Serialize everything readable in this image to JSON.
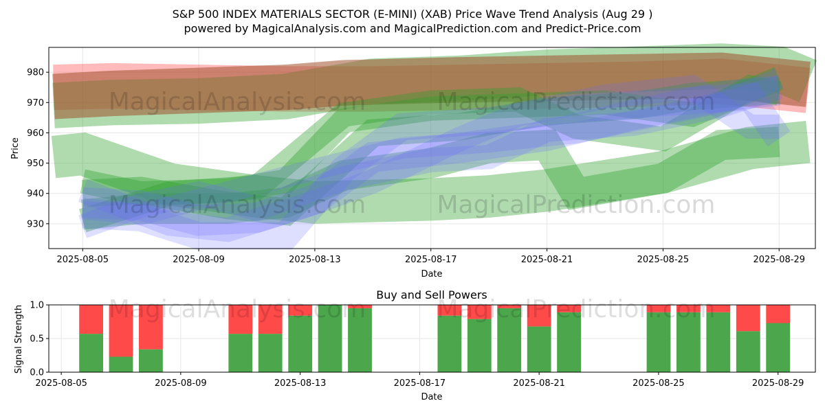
{
  "title": "S&P 500 INDEX MATERIALS SECTOR (E-MINI) (XAB) Price Wave Trend Analysis (Aug 29 )",
  "subtitle": "powered by MagicalAnalysis.com and MagicalPrediction.com and Predict-Price.com",
  "watermarks": [
    "MagicalAnalysis.com",
    "MagicalPrediction.com"
  ],
  "colors": {
    "green_band": "#2ca02c",
    "red_band": "#ff4d4d",
    "blue_band": "#6b6bff",
    "buy_bar": "#4ca64c",
    "sell_bar": "#ff4a4a"
  },
  "chart_data": [
    {
      "type": "line",
      "title": "",
      "xlabel": "Date",
      "ylabel": "Price",
      "x_ticks": [
        "2025-08-05",
        "2025-08-09",
        "2025-08-13",
        "2025-08-17",
        "2025-08-21",
        "2025-08-25",
        "2025-08-29"
      ],
      "y_ticks": [
        930,
        940,
        950,
        960,
        970,
        980
      ],
      "xlim": [
        "2025-08-03 20:00",
        "2025-08-30 06:00"
      ],
      "ylim": [
        921.8,
        988.2
      ],
      "grid": true,
      "series": [
        {
          "color": "red",
          "width": 15,
          "x": [
            "2025-08-04",
            "2025-08-06",
            "2025-08-09",
            "2025-08-12",
            "2025-08-15",
            "2025-08-18",
            "2025-08-21",
            "2025-08-24",
            "2025-08-27",
            "2025-08-29",
            "2025-08-30"
          ],
          "y": [
            975,
            975.5,
            975,
            974.5,
            974.5,
            975,
            975.5,
            976,
            977,
            975,
            974
          ]
        },
        {
          "color": "green",
          "width": 15,
          "x": [
            "2025-08-04",
            "2025-08-06",
            "2025-08-09",
            "2025-08-12",
            "2025-08-15",
            "2025-08-18",
            "2025-08-21",
            "2025-08-24",
            "2025-08-27",
            "2025-08-29",
            "2025-08-30"
          ],
          "y": [
            969,
            970,
            970.5,
            972,
            977,
            978,
            980,
            981,
            982,
            981,
            977
          ]
        },
        {
          "color": "brown",
          "width": 15,
          "x": [
            "2025-08-04",
            "2025-08-06",
            "2025-08-09",
            "2025-08-12",
            "2025-08-14",
            "2025-08-18",
            "2025-08-21",
            "2025-08-24",
            "2025-08-27",
            "2025-08-30"
          ],
          "y": [
            972,
            973,
            974,
            975,
            976.5,
            977.5,
            978,
            978.5,
            979,
            976
          ]
        },
        {
          "color": "green",
          "width": 14,
          "x": [
            "2025-08-04",
            "2025-08-05",
            "2025-08-08",
            "2025-08-11",
            "2025-08-13",
            "2025-08-17",
            "2025-08-19",
            "2025-08-21",
            "2025-08-23",
            "2025-08-25",
            "2025-08-28",
            "2025-08-30"
          ],
          "y": [
            952,
            953,
            943,
            939,
            937,
            938,
            939,
            941,
            944,
            947,
            955,
            957
          ]
        },
        {
          "color": "green",
          "width": 10,
          "x": [
            "2025-08-05",
            "2025-08-07",
            "2025-08-10",
            "2025-08-12",
            "2025-08-14",
            "2025-08-17",
            "2025-08-19",
            "2025-08-21",
            "2025-08-22",
            "2025-08-25",
            "2025-08-27",
            "2025-08-29"
          ],
          "y": [
            933,
            935,
            935,
            937,
            946,
            950,
            955,
            956,
            940,
            945,
            956,
            957
          ]
        },
        {
          "color": "green",
          "width": 9,
          "x": [
            "2025-08-05",
            "2025-08-07",
            "2025-08-10",
            "2025-08-12",
            "2025-08-15",
            "2025-08-18",
            "2025-08-21",
            "2025-08-24",
            "2025-08-26",
            "2025-08-29"
          ],
          "y": [
            940,
            941,
            936,
            934,
            960,
            962,
            967,
            969,
            972,
            974
          ]
        },
        {
          "color": "green",
          "width": 8,
          "x": [
            "2025-08-05",
            "2025-08-08",
            "2025-08-11",
            "2025-08-14",
            "2025-08-17",
            "2025-08-20",
            "2025-08-22",
            "2025-08-25",
            "2025-08-28",
            "2025-08-29"
          ],
          "y": [
            931,
            940,
            942,
            966,
            970,
            971,
            962,
            958,
            975,
            973
          ]
        },
        {
          "color": "green",
          "width": 8,
          "x": [
            "2025-08-05",
            "2025-08-07",
            "2025-08-10",
            "2025-08-12",
            "2025-08-14",
            "2025-08-17",
            "2025-08-20",
            "2025-08-23",
            "2025-08-26",
            "2025-08-29"
          ],
          "y": [
            944,
            940,
            941,
            944,
            964,
            968,
            969,
            970,
            966,
            978
          ]
        },
        {
          "color": "blue",
          "width": 10,
          "x": [
            "2025-08-05",
            "2025-08-07",
            "2025-08-09",
            "2025-08-11",
            "2025-08-13",
            "2025-08-15",
            "2025-08-18",
            "2025-08-21",
            "2025-08-24",
            "2025-08-27",
            "2025-08-29"
          ],
          "y": [
            937,
            936,
            931,
            932,
            938,
            952,
            955,
            959,
            966,
            972,
            974
          ]
        },
        {
          "color": "blue",
          "width": 9,
          "x": [
            "2025-08-05",
            "2025-08-07",
            "2025-08-09",
            "2025-08-12",
            "2025-08-14",
            "2025-08-16",
            "2025-08-19",
            "2025-08-22",
            "2025-08-25",
            "2025-08-28",
            "2025-08-29"
          ],
          "y": [
            933,
            932,
            926,
            926,
            948,
            962,
            964,
            968,
            970,
            972,
            958
          ]
        },
        {
          "color": "blue",
          "width": 8,
          "x": [
            "2025-08-05",
            "2025-08-07",
            "2025-08-09",
            "2025-08-11",
            "2025-08-14",
            "2025-08-17",
            "2025-08-19",
            "2025-08-21",
            "2025-08-24",
            "2025-08-27",
            "2025-08-29"
          ],
          "y": [
            929,
            936,
            940,
            935,
            945,
            951,
            952,
            961,
            963,
            969,
            975
          ]
        },
        {
          "color": "blue",
          "width": 8,
          "x": [
            "2025-08-05",
            "2025-08-08",
            "2025-08-10",
            "2025-08-13",
            "2025-08-15",
            "2025-08-18",
            "2025-08-20",
            "2025-08-23",
            "2025-08-26",
            "2025-08-28",
            "2025-08-29"
          ],
          "y": [
            941,
            930,
            928,
            937,
            944,
            958,
            966,
            972,
            975,
            962,
            962
          ]
        },
        {
          "color": "blue",
          "width": 7,
          "x": [
            "2025-08-05",
            "2025-08-07",
            "2025-08-09",
            "2025-08-11",
            "2025-08-13",
            "2025-08-16",
            "2025-08-19",
            "2025-08-22",
            "2025-08-25",
            "2025-08-27",
            "2025-08-29"
          ],
          "y": [
            935,
            933,
            938,
            943,
            948,
            955,
            957,
            960,
            966,
            970,
            978
          ]
        }
      ]
    },
    {
      "type": "bar",
      "title": "Buy and Sell Powers",
      "xlabel": "Date",
      "ylabel": "Signal Strength",
      "x_ticks": [
        "2025-08-05",
        "2025-08-09",
        "2025-08-13",
        "2025-08-17",
        "2025-08-21",
        "2025-08-25",
        "2025-08-29"
      ],
      "y_ticks": [
        "0.0",
        "0.5",
        "1.0"
      ],
      "xlim": [
        "2025-08-04 14:00",
        "2025-08-30 06:00"
      ],
      "ylim": [
        0,
        1
      ],
      "series": [
        {
          "name": "Buy",
          "color": "green",
          "values": [
            0.57,
            0.23,
            0.34,
            0.57,
            0.57,
            0.84,
            1.0,
            0.95,
            0.84,
            0.79,
            0.95,
            0.68,
            0.89,
            0.89,
            0.89,
            0.89,
            0.61,
            0.73
          ]
        },
        {
          "name": "Sell",
          "color": "red",
          "values": [
            0.43,
            0.77,
            0.66,
            0.43,
            0.43,
            0.16,
            0.0,
            0.05,
            0.16,
            0.21,
            0.05,
            0.32,
            0.11,
            0.11,
            0.11,
            0.11,
            0.39,
            0.27
          ]
        }
      ],
      "categories": [
        "2025-08-06",
        "2025-08-07",
        "2025-08-08",
        "2025-08-11",
        "2025-08-12",
        "2025-08-13",
        "2025-08-14",
        "2025-08-15",
        "2025-08-18",
        "2025-08-19",
        "2025-08-20",
        "2025-08-21",
        "2025-08-22",
        "2025-08-25",
        "2025-08-26",
        "2025-08-27",
        "2025-08-28",
        "2025-08-29"
      ]
    }
  ]
}
